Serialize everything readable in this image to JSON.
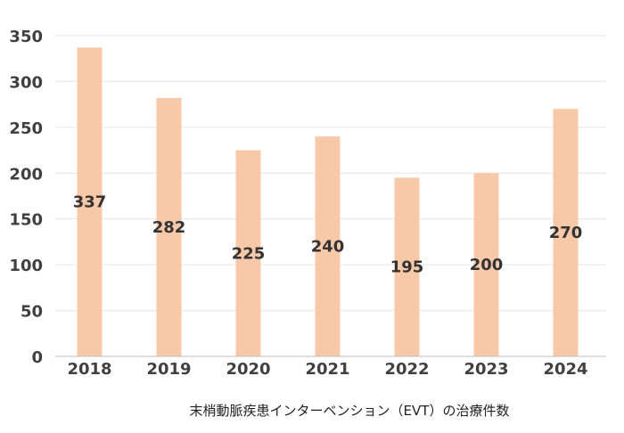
{
  "chart_data": {
    "type": "bar",
    "categories": [
      "2018",
      "2019",
      "2020",
      "2021",
      "2022",
      "2023",
      "2024"
    ],
    "values": [
      337,
      282,
      225,
      240,
      195,
      200,
      270
    ],
    "title": "",
    "caption": "末梢動脈疾患インターベンション（EVT）の治療件数",
    "xlabel": "",
    "ylabel": "",
    "ylim": [
      0,
      350
    ],
    "yticks": [
      "0",
      "50",
      "100",
      "150",
      "200",
      "250",
      "300",
      "350"
    ],
    "grid": true,
    "legend": "none",
    "colors": {
      "bar": "#F8C9A8",
      "grid": "#E6E6E6",
      "axis": "#BFBFBF"
    }
  }
}
